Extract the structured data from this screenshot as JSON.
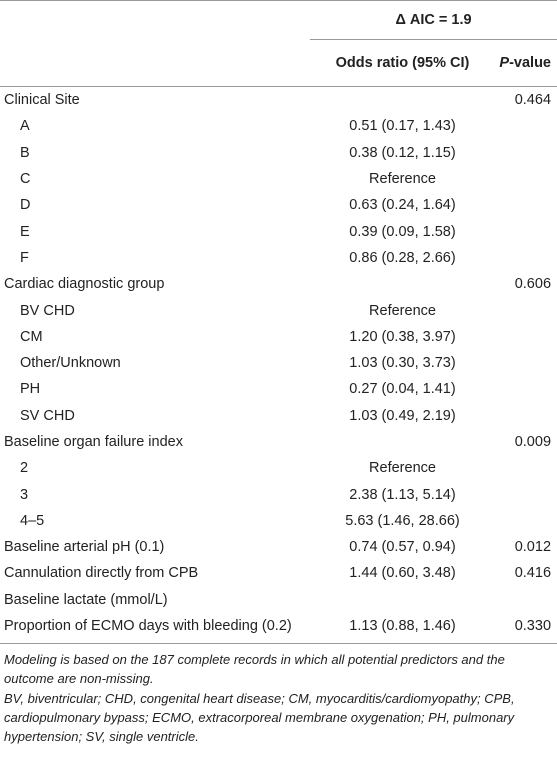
{
  "header": {
    "group": "Δ AIC = 1.9",
    "or": "Odds ratio (95% CI)",
    "p": {
      "italic": "P",
      "rest": "-value"
    }
  },
  "table": {
    "rows": [
      {
        "label": "Clinical Site",
        "p": "0.464",
        "items": [
          {
            "label": "A",
            "or": "0.51 (0.17, 1.43)"
          },
          {
            "label": "B",
            "or": "0.38 (0.12, 1.15)"
          },
          {
            "label": "C",
            "or": "Reference"
          },
          {
            "label": "D",
            "or": "0.63 (0.24, 1.64)"
          },
          {
            "label": "E",
            "or": "0.39 (0.09, 1.58)"
          },
          {
            "label": "F",
            "or": "0.86 (0.28, 2.66)"
          }
        ]
      },
      {
        "label": "Cardiac diagnostic group",
        "p": "0.606",
        "items": [
          {
            "label": "BV CHD",
            "or": "Reference"
          },
          {
            "label": "CM",
            "or": "1.20 (0.38, 3.97)"
          },
          {
            "label": "Other/Unknown",
            "or": "1.03 (0.30, 3.73)"
          },
          {
            "label": "PH",
            "or": "0.27 (0.04, 1.41)"
          },
          {
            "label": "SV CHD",
            "or": "1.03 (0.49, 2.19)"
          }
        ]
      },
      {
        "label": "Baseline organ failure index",
        "p": "0.009",
        "items": [
          {
            "label": "2",
            "or": "Reference"
          },
          {
            "label": "3",
            "or": "2.38 (1.13, 5.14)"
          },
          {
            "label": "4–5",
            "or": "5.63 (1.46, 28.66)"
          }
        ]
      },
      {
        "label": "Baseline arterial pH (0.1)",
        "or": "0.74 (0.57, 0.94)",
        "p": "0.012"
      },
      {
        "label": "Cannulation directly from CPB",
        "or": "1.44 (0.60, 3.48)",
        "p": "0.416"
      },
      {
        "label": "Baseline lactate (mmol/L)"
      },
      {
        "label": "Proportion of ECMO days with bleeding (0.2)",
        "or": "1.13 (0.88, 1.46)",
        "p": "0.330"
      }
    ]
  },
  "notes": [
    "Modeling is based on the 187 complete records in which all potential predictors and the outcome are non-missing.",
    "BV, biventricular; CHD, congenital heart disease; CM, myocarditis/cardiomyopathy; CPB, cardiopulmonary bypass; ECMO, extracorporeal membrane oxygenation; PH, pulmonary hypertension; SV, single ventricle."
  ]
}
